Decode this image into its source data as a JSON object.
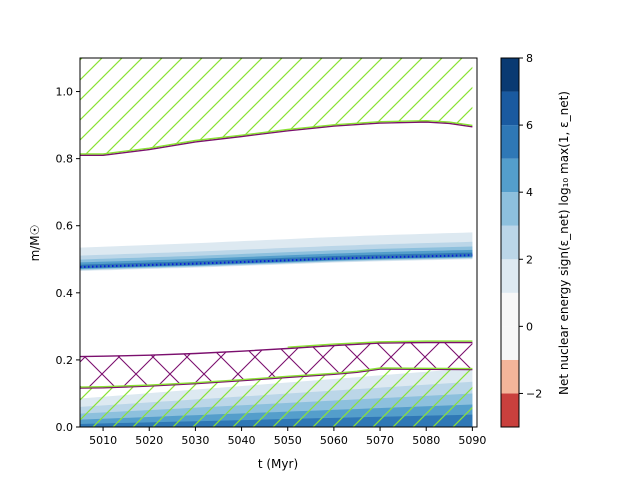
{
  "chart_data": {
    "type": "heatmap",
    "xlabel": "t (Myr)",
    "ylabel": "m/M☉",
    "xlim": [
      5005,
      5091
    ],
    "ylim": [
      0.0,
      1.1
    ],
    "xticks": [
      5010,
      5020,
      5030,
      5040,
      5050,
      5060,
      5070,
      5080,
      5090
    ],
    "yticks": [
      0.0,
      0.2,
      0.4,
      0.6,
      0.8,
      1.0
    ],
    "colorbar": {
      "label": "Net nuclear energy sign(ε_net) log₁₀ max(1, ε_net)",
      "ticks": [
        -2,
        0,
        2,
        4,
        6,
        8
      ],
      "range": [
        -3,
        8
      ],
      "levels": [
        -3,
        -2,
        -1,
        0,
        1,
        2,
        3,
        4,
        5,
        6,
        7,
        8
      ],
      "colors": [
        "#c9403d",
        "#f4b59a",
        "#f7f7f7",
        "#f7f7f7",
        "#dde9f1",
        "#bbd6e8",
        "#8dc0dd",
        "#549ecb",
        "#2f78b6",
        "#1a5aa0",
        "#0a3a72"
      ]
    },
    "series": [
      {
        "kind": "convective_envelope_boundary",
        "t": [
          5005,
          5010,
          5020,
          5030,
          5040,
          5050,
          5060,
          5070,
          5080,
          5085,
          5090
        ],
        "m": [
          0.81,
          0.81,
          0.827,
          0.85,
          0.866,
          0.883,
          0.897,
          0.906,
          0.909,
          0.905,
          0.895
        ]
      },
      {
        "kind": "burning_region_center",
        "t": [
          5005,
          5010,
          5020,
          5030,
          5040,
          5050,
          5060,
          5070,
          5080,
          5090
        ],
        "m": [
          0.477,
          0.479,
          0.483,
          0.487,
          0.492,
          0.497,
          0.502,
          0.506,
          0.509,
          0.512
        ]
      },
      {
        "kind": "convective_zone_upper",
        "t": [
          5005,
          5010,
          5020,
          5030,
          5040,
          5050,
          5060,
          5070,
          5080,
          5090
        ],
        "m": [
          0.21,
          0.211,
          0.214,
          0.219,
          0.226,
          0.234,
          0.243,
          0.25,
          0.252,
          0.252
        ]
      },
      {
        "kind": "convective_zone_lower",
        "t": [
          5005,
          5010,
          5020,
          5030,
          5040,
          5050,
          5060,
          5065,
          5070,
          5080,
          5090
        ],
        "m": [
          0.116,
          0.117,
          0.122,
          0.129,
          0.138,
          0.148,
          0.157,
          0.163,
          0.173,
          0.172,
          0.171
        ]
      }
    ]
  }
}
